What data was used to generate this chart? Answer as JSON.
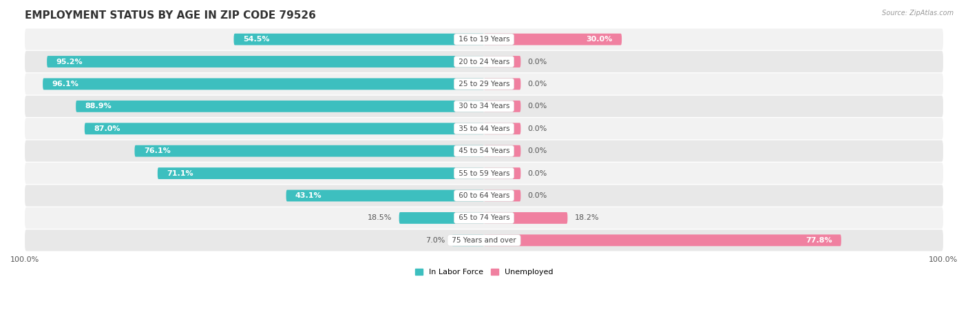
{
  "title": "EMPLOYMENT STATUS BY AGE IN ZIP CODE 79526",
  "source": "Source: ZipAtlas.com",
  "categories": [
    "16 to 19 Years",
    "20 to 24 Years",
    "25 to 29 Years",
    "30 to 34 Years",
    "35 to 44 Years",
    "45 to 54 Years",
    "55 to 59 Years",
    "60 to 64 Years",
    "65 to 74 Years",
    "75 Years and over"
  ],
  "labor_force": [
    54.5,
    95.2,
    96.1,
    88.9,
    87.0,
    76.1,
    71.1,
    43.1,
    18.5,
    7.0
  ],
  "unemployed": [
    30.0,
    0.0,
    0.0,
    0.0,
    0.0,
    0.0,
    0.0,
    0.0,
    18.2,
    77.8
  ],
  "labor_color": "#3dbfbf",
  "unemployed_color": "#f080a0",
  "bar_height": 0.52,
  "title_fontsize": 11,
  "label_fontsize": 8.0,
  "cat_label_fontsize": 7.5,
  "legend_labels": [
    "In Labor Force",
    "Unemployed"
  ],
  "small_bar_pct": 8.0,
  "stub_size": 8.0
}
